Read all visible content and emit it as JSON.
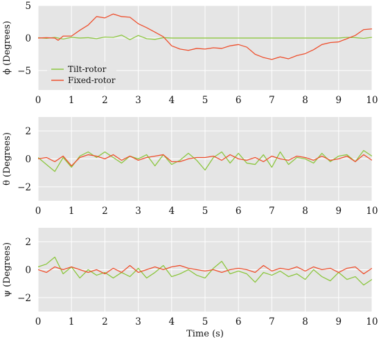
{
  "colors": {
    "panel_bg": "#e5e5e5",
    "grid": "#ffffff",
    "tilt_rotor": "#8cc63f",
    "fixed_rotor": "#ee4e2c"
  },
  "xlabel": "Time (s)",
  "legend": {
    "location": "lower-left of top panel",
    "entries": [
      "Tilt-rotor",
      "Fixed-rotor"
    ]
  },
  "chart_data": [
    {
      "type": "line",
      "ylabel": "ϕ (Degrees)",
      "xlim": [
        0,
        10
      ],
      "ylim": [
        -8,
        5
      ],
      "xticks": [
        0,
        1,
        2,
        3,
        4,
        5,
        6,
        7,
        8,
        9,
        10
      ],
      "yticks": [
        -5,
        0,
        5
      ],
      "grid": true,
      "series": [
        {
          "name": "Tilt-rotor",
          "x": [
            0,
            0.25,
            0.5,
            0.75,
            1,
            1.25,
            1.5,
            1.75,
            2,
            2.25,
            2.5,
            2.75,
            3,
            3.25,
            3.5,
            3.75,
            4,
            4.5,
            5,
            5.5,
            6,
            6.5,
            7,
            7.5,
            8,
            8.5,
            9,
            9.25,
            9.5,
            9.75,
            10
          ],
          "y": [
            0.05,
            -0.05,
            0.1,
            -0.15,
            0.1,
            0.0,
            0.05,
            -0.1,
            0.15,
            0.1,
            0.45,
            -0.25,
            0.4,
            -0.1,
            -0.2,
            0.05,
            0.0,
            0.0,
            0.0,
            0.0,
            0.0,
            0.0,
            0.0,
            0.0,
            0.0,
            0.0,
            0.0,
            0.1,
            0.05,
            -0.05,
            0.1
          ]
        },
        {
          "name": "Fixed-rotor",
          "x": [
            0,
            0.25,
            0.5,
            0.6,
            0.75,
            1,
            1.25,
            1.5,
            1.75,
            2,
            2.25,
            2.5,
            2.75,
            3,
            3.25,
            3.5,
            3.75,
            4,
            4.25,
            4.5,
            4.75,
            5,
            5.25,
            5.5,
            5.75,
            6,
            6.25,
            6.5,
            6.75,
            7,
            7.25,
            7.5,
            7.75,
            8,
            8.25,
            8.5,
            8.75,
            9,
            9.25,
            9.5,
            9.75,
            10
          ],
          "y": [
            0.0,
            0.05,
            0.0,
            -0.35,
            0.3,
            0.3,
            1.2,
            2.0,
            3.3,
            3.1,
            3.7,
            3.3,
            3.2,
            2.2,
            1.6,
            0.9,
            0.2,
            -1.2,
            -1.7,
            -1.9,
            -1.6,
            -1.7,
            -1.5,
            -1.6,
            -1.2,
            -1.0,
            -1.4,
            -2.5,
            -3.0,
            -3.3,
            -2.9,
            -3.2,
            -2.7,
            -2.4,
            -1.8,
            -1.0,
            -0.7,
            -0.6,
            -0.1,
            0.4,
            1.3,
            1.4
          ]
        }
      ]
    },
    {
      "type": "line",
      "ylabel": "θ (Degrees)",
      "xlim": [
        0,
        10
      ],
      "ylim": [
        -3,
        3
      ],
      "xticks": [
        0,
        1,
        2,
        3,
        4,
        5,
        6,
        7,
        8,
        9,
        10
      ],
      "yticks": [
        -2,
        0,
        2
      ],
      "grid": true,
      "series": [
        {
          "name": "Tilt-rotor",
          "x": [
            0,
            0.25,
            0.5,
            0.75,
            1,
            1.25,
            1.5,
            1.75,
            2,
            2.25,
            2.5,
            2.75,
            3,
            3.25,
            3.5,
            3.75,
            4,
            4.25,
            4.5,
            4.75,
            5,
            5.25,
            5.5,
            5.75,
            6,
            6.25,
            6.5,
            6.75,
            7,
            7.25,
            7.5,
            7.75,
            8,
            8.25,
            8.5,
            8.75,
            9,
            9.25,
            9.5,
            9.75,
            10
          ],
          "y": [
            0.1,
            -0.4,
            -0.9,
            0.1,
            -0.6,
            0.2,
            0.5,
            0.1,
            0.5,
            0.1,
            -0.3,
            0.2,
            0.0,
            0.3,
            -0.5,
            0.3,
            -0.4,
            -0.1,
            0.4,
            -0.1,
            -0.8,
            0.1,
            0.5,
            -0.3,
            0.4,
            -0.3,
            -0.4,
            0.3,
            -0.6,
            0.5,
            -0.4,
            0.1,
            0.0,
            -0.3,
            0.4,
            -0.2,
            0.2,
            0.3,
            -0.2,
            0.6,
            0.2
          ]
        },
        {
          "name": "Fixed-rotor",
          "x": [
            0,
            0.25,
            0.5,
            0.75,
            1,
            1.25,
            1.5,
            1.75,
            2,
            2.25,
            2.5,
            2.75,
            3,
            3.25,
            3.5,
            3.75,
            4,
            4.25,
            4.5,
            4.75,
            5,
            5.25,
            5.5,
            5.75,
            6,
            6.25,
            6.5,
            6.75,
            7,
            7.25,
            7.5,
            7.75,
            8,
            8.25,
            8.5,
            8.75,
            9,
            9.25,
            9.5,
            9.75,
            10
          ],
          "y": [
            0.0,
            0.1,
            -0.2,
            0.2,
            -0.5,
            0.1,
            0.3,
            0.2,
            0.0,
            0.3,
            -0.1,
            0.2,
            -0.1,
            0.1,
            0.2,
            0.3,
            -0.2,
            -0.2,
            0.0,
            0.1,
            0.1,
            0.2,
            -0.1,
            0.3,
            0.0,
            -0.1,
            0.1,
            -0.2,
            0.2,
            0.0,
            -0.1,
            0.2,
            0.1,
            -0.1,
            0.2,
            -0.1,
            0.0,
            0.2,
            -0.2,
            0.3,
            -0.1
          ]
        }
      ]
    },
    {
      "type": "line",
      "ylabel": "ψ (Degrees)",
      "xlim": [
        0,
        10
      ],
      "ylim": [
        -3,
        3
      ],
      "xticks": [
        0,
        1,
        2,
        3,
        4,
        5,
        6,
        7,
        8,
        9,
        10
      ],
      "yticks": [
        -2,
        0,
        2
      ],
      "grid": true,
      "series": [
        {
          "name": "Tilt-rotor",
          "x": [
            0,
            0.25,
            0.5,
            0.75,
            1,
            1.25,
            1.5,
            1.75,
            2,
            2.25,
            2.5,
            2.75,
            3,
            3.25,
            3.5,
            3.75,
            4,
            4.25,
            4.5,
            4.75,
            5,
            5.25,
            5.5,
            5.75,
            6,
            6.25,
            6.5,
            6.75,
            7,
            7.25,
            7.5,
            7.75,
            8,
            8.25,
            8.5,
            8.75,
            9,
            9.25,
            9.5,
            9.75,
            10
          ],
          "y": [
            0.2,
            0.4,
            0.9,
            -0.3,
            0.2,
            -0.6,
            0.0,
            -0.4,
            -0.2,
            -0.6,
            -0.2,
            -0.5,
            0.1,
            -0.6,
            -0.2,
            0.3,
            -0.5,
            -0.3,
            0.0,
            -0.4,
            -0.6,
            0.1,
            0.6,
            -0.3,
            -0.1,
            -0.3,
            -0.9,
            -0.2,
            -0.4,
            -0.1,
            -0.5,
            -0.3,
            -0.7,
            0.0,
            -0.5,
            -0.8,
            -0.2,
            -0.7,
            -0.5,
            -1.1,
            -0.7
          ]
        },
        {
          "name": "Fixed-rotor",
          "x": [
            0,
            0.25,
            0.5,
            0.75,
            1,
            1.25,
            1.5,
            1.75,
            2,
            2.25,
            2.5,
            2.75,
            3,
            3.25,
            3.5,
            3.75,
            4,
            4.25,
            4.5,
            4.75,
            5,
            5.25,
            5.5,
            5.75,
            6,
            6.25,
            6.5,
            6.75,
            7,
            7.25,
            7.5,
            7.75,
            8,
            8.25,
            8.5,
            8.75,
            9,
            9.25,
            9.5,
            9.75,
            10
          ],
          "y": [
            0.0,
            -0.2,
            0.2,
            0.0,
            0.2,
            0.0,
            -0.2,
            0.0,
            -0.3,
            0.1,
            -0.2,
            0.3,
            -0.2,
            0.0,
            0.2,
            0.0,
            0.2,
            0.3,
            0.1,
            0.0,
            -0.1,
            0.0,
            -0.2,
            0.0,
            0.1,
            0.0,
            -0.2,
            0.3,
            -0.1,
            0.1,
            0.0,
            0.2,
            -0.1,
            0.2,
            0.0,
            0.1,
            -0.2,
            0.1,
            0.2,
            -0.3,
            0.1
          ]
        }
      ]
    }
  ]
}
